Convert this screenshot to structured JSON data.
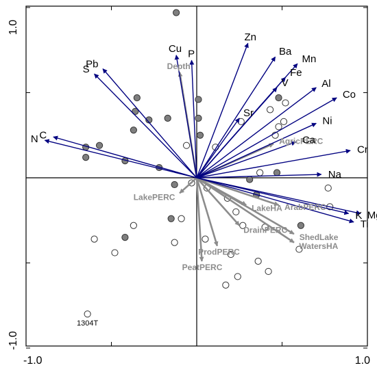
{
  "chart_data": {
    "type": "scatter",
    "title": "",
    "xlabel": "",
    "ylabel": "",
    "xlim": [
      -1.0,
      1.0
    ],
    "ylim": [
      -1.0,
      1.0
    ],
    "x_tick_labels": [
      {
        "value": -1.0,
        "text": "-1.0"
      },
      {
        "value": 1.0,
        "text": "1.0"
      }
    ],
    "y_tick_labels": [
      {
        "value": 1.0,
        "text": "1.0"
      },
      {
        "value": -1.0,
        "text": "-1.0"
      }
    ],
    "grid": false,
    "colors": {
      "species_arrow": "#000080",
      "environment_arrow": "#8c8c8c",
      "filled_site": "#7f7f7f",
      "open_site": "#ffffff"
    },
    "species_vectors": [
      {
        "label": "Zn",
        "x": 0.3,
        "y": 0.79
      },
      {
        "label": "Cu",
        "x": -0.12,
        "y": 0.72
      },
      {
        "label": "P",
        "x": -0.03,
        "y": 0.69
      },
      {
        "label": "Pb",
        "x": -0.55,
        "y": 0.64
      },
      {
        "label": "S",
        "x": -0.6,
        "y": 0.61
      },
      {
        "label": "Ba",
        "x": 0.46,
        "y": 0.71
      },
      {
        "label": "Mn",
        "x": 0.59,
        "y": 0.67
      },
      {
        "label": "Fe",
        "x": 0.52,
        "y": 0.59
      },
      {
        "label": "V",
        "x": 0.47,
        "y": 0.53
      },
      {
        "label": "Al",
        "x": 0.7,
        "y": 0.53
      },
      {
        "label": "Co",
        "x": 0.82,
        "y": 0.47
      },
      {
        "label": "Ni",
        "x": 0.7,
        "y": 0.32
      },
      {
        "label": "Sr",
        "x": 0.25,
        "y": 0.35
      },
      {
        "label": "Ca",
        "x": 0.58,
        "y": 0.21
      },
      {
        "label": "Cr",
        "x": 0.9,
        "y": 0.16
      },
      {
        "label": "Na",
        "x": 0.73,
        "y": 0.02
      },
      {
        "label": "N",
        "x": -0.89,
        "y": 0.22
      },
      {
        "label": "C",
        "x": -0.84,
        "y": 0.24
      },
      {
        "label": "K",
        "x": 0.89,
        "y": -0.21
      },
      {
        "label": "Mg",
        "x": 0.96,
        "y": -0.21
      },
      {
        "label": "Ti",
        "x": 0.92,
        "y": -0.26
      }
    ],
    "environment_vectors": [
      {
        "label": "Depth",
        "x": -0.1,
        "y": 0.62
      },
      {
        "label": "AgricPERC",
        "x": 0.45,
        "y": 0.2
      },
      {
        "label": "LakePERC",
        "x": -0.1,
        "y": -0.09
      },
      {
        "label": "LakeHA",
        "x": 0.29,
        "y": -0.16
      },
      {
        "label": "ArabPERC",
        "x": 0.48,
        "y": -0.16
      },
      {
        "label": "DrainPERC",
        "x": 0.25,
        "y": -0.28
      },
      {
        "label": "ProdPERC",
        "x": 0.12,
        "y": -0.4
      },
      {
        "label": "PeatPERC",
        "x": 0.03,
        "y": -0.49
      },
      {
        "label": "ShedLake",
        "x": 0.57,
        "y": -0.33
      },
      {
        "label": "WatersHA",
        "x": 0.57,
        "y": -0.38
      }
    ],
    "sites_filled": [
      {
        "x": -0.12,
        "y": 0.97
      },
      {
        "x": -0.35,
        "y": 0.47
      },
      {
        "x": -0.36,
        "y": 0.39
      },
      {
        "x": 0.01,
        "y": 0.46
      },
      {
        "x": -0.28,
        "y": 0.34
      },
      {
        "x": -0.17,
        "y": 0.35
      },
      {
        "x": 0.01,
        "y": 0.35
      },
      {
        "x": -0.37,
        "y": 0.28
      },
      {
        "x": 0.02,
        "y": 0.25
      },
      {
        "x": -0.57,
        "y": 0.19
      },
      {
        "x": -0.65,
        "y": 0.18
      },
      {
        "x": -0.65,
        "y": 0.12
      },
      {
        "x": -0.42,
        "y": 0.1
      },
      {
        "x": -0.22,
        "y": 0.06
      },
      {
        "x": 0.47,
        "y": 0.03
      },
      {
        "x": -0.13,
        "y": -0.04
      },
      {
        "x": -0.15,
        "y": -0.24
      },
      {
        "x": -0.42,
        "y": -0.35
      },
      {
        "x": 0.31,
        "y": -0.01
      },
      {
        "x": 0.35,
        "y": -0.1
      },
      {
        "x": 0.61,
        "y": -0.28
      },
      {
        "x": 0.48,
        "y": 0.47
      }
    ],
    "sites_open": [
      {
        "x": 0.52,
        "y": 0.44
      },
      {
        "x": 0.43,
        "y": 0.4
      },
      {
        "x": 0.26,
        "y": 0.33
      },
      {
        "x": 0.51,
        "y": 0.33
      },
      {
        "x": -0.06,
        "y": 0.19
      },
      {
        "x": 0.11,
        "y": 0.18
      },
      {
        "x": 0.46,
        "y": 0.25
      },
      {
        "x": 0.48,
        "y": 0.3
      },
      {
        "x": 0.37,
        "y": 0.03
      },
      {
        "x": 0.77,
        "y": -0.06
      },
      {
        "x": 0.78,
        "y": -0.17
      },
      {
        "x": -0.03,
        "y": -0.03
      },
      {
        "x": 0.06,
        "y": -0.06
      },
      {
        "x": 0.18,
        "y": -0.12
      },
      {
        "x": 0.23,
        "y": -0.2
      },
      {
        "x": 0.27,
        "y": -0.28
      },
      {
        "x": 0.4,
        "y": -0.29
      },
      {
        "x": -0.09,
        "y": -0.24
      },
      {
        "x": -0.37,
        "y": -0.28
      },
      {
        "x": -0.13,
        "y": -0.38
      },
      {
        "x": -0.6,
        "y": -0.36
      },
      {
        "x": -0.48,
        "y": -0.44
      },
      {
        "x": 0.05,
        "y": -0.36
      },
      {
        "x": 0.6,
        "y": -0.42
      },
      {
        "x": 0.2,
        "y": -0.45
      },
      {
        "x": 0.36,
        "y": -0.49
      },
      {
        "x": 0.24,
        "y": -0.58
      },
      {
        "x": 0.42,
        "y": -0.55
      },
      {
        "x": 0.17,
        "y": -0.63
      }
    ],
    "labeled_sites": [
      {
        "label": "1304T",
        "x": -0.64,
        "y": -0.8
      }
    ]
  }
}
